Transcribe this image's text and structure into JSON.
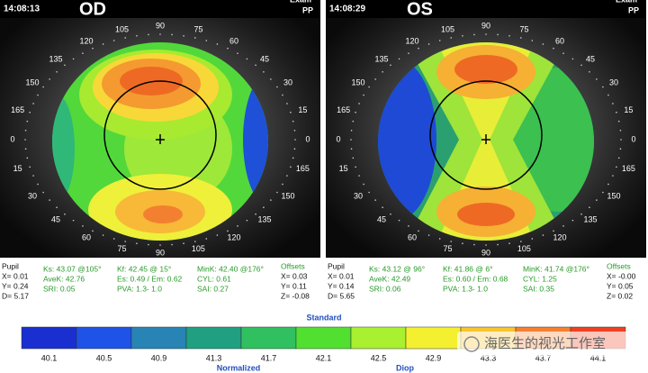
{
  "panels": [
    {
      "time": "14:08:13",
      "eye": "OD",
      "exam": "Exam",
      "pp": "PP",
      "degree_labels": [
        "0",
        "165",
        "150",
        "135",
        "120",
        "105",
        "90",
        "75",
        "60",
        "45",
        "30",
        "15",
        "0",
        "165",
        "150",
        "135",
        "120",
        "105",
        "90",
        "75",
        "60",
        "45",
        "30",
        "15"
      ],
      "info": [
        [
          "Pupil",
          "X= 0.01",
          "Y= 0.24",
          "D= 5.17"
        ],
        [
          "Ks: 43.07 @105°",
          "AveK: 42.76",
          "SRI: 0.05"
        ],
        [
          "Kf: 42.45 @ 15°",
          "Es: 0.49 / Em: 0.62",
          "PVA: 1.3- 1.0"
        ],
        [
          "MinK: 42.40 @176°",
          "CYL: 0.61",
          "SAI: 0.27"
        ],
        [
          "Offsets",
          "X= 0.03",
          "Y= 0.11",
          "Z= -0.08"
        ]
      ]
    },
    {
      "time": "14:08:29",
      "eye": "OS",
      "exam": "Exam",
      "pp": "PP",
      "degree_labels": [
        "0",
        "165",
        "150",
        "135",
        "120",
        "105",
        "90",
        "75",
        "60",
        "45",
        "30",
        "15",
        "0",
        "165",
        "150",
        "135",
        "120",
        "105",
        "90",
        "75",
        "60",
        "45",
        "30",
        "15"
      ],
      "info": [
        [
          "Pupil",
          "X= 0.01",
          "Y= 0.14",
          "D= 5.65"
        ],
        [
          "Ks: 43.12 @ 96°",
          "AveK: 42.49",
          "SRI: 0.06"
        ],
        [
          "Kf: 41.86 @ 6°",
          "Es: 0.60 / Em: 0.68",
          "PVA: 1.3- 1.0"
        ],
        [
          "MinK: 41.74 @176°",
          "CYL: 1.25",
          "SAI: 0.35"
        ],
        [
          "Offsets",
          "X= -0.00",
          "Y= 0.05",
          "Z= 0.02"
        ]
      ]
    }
  ],
  "scale": {
    "title": "Standard",
    "values": [
      "40.1",
      "40.5",
      "40.9",
      "41.3",
      "41.7",
      "42.1",
      "42.5",
      "42.9",
      "43.3",
      "43.7",
      "44.1"
    ],
    "left_label": "Normalized",
    "right_label": "Diop"
  },
  "watermark": "海医生的视光工作室"
}
